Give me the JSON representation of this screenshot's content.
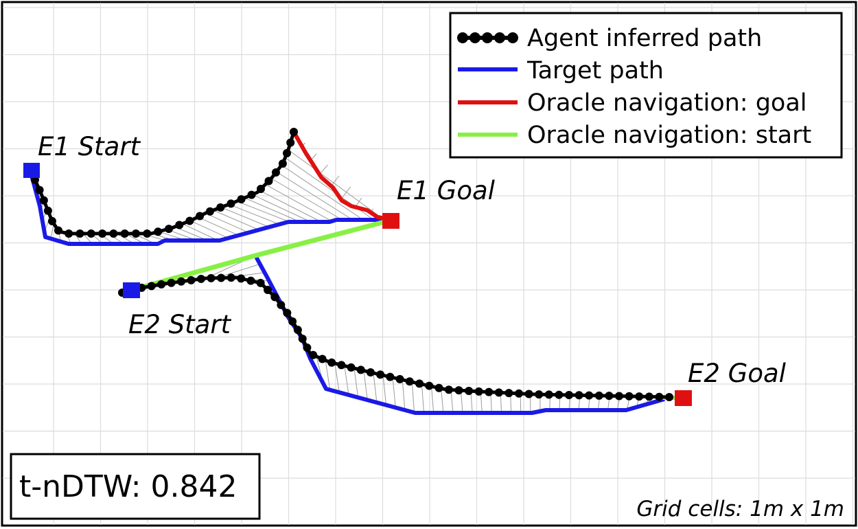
{
  "labels": {
    "e1_start": "E1 Start",
    "e1_goal": "E1 Goal",
    "e2_start": "E2 Start",
    "e2_goal": "E2 Goal"
  },
  "legend": [
    {
      "label": "Agent inferred path",
      "color": "#000000",
      "style": "dots"
    },
    {
      "label": "Target path",
      "color": "#1a1ae6",
      "style": "line"
    },
    {
      "label": "Oracle navigation: goal",
      "color": "#e01010",
      "style": "line"
    },
    {
      "label": "Oracle navigation: start",
      "color": "#88f045",
      "style": "line"
    }
  ],
  "metric": "t-nDTW: 0.842",
  "grid_caption": "Grid cells: 1m x 1m",
  "colors": {
    "agent": "#000000",
    "target": "#1a1ae6",
    "oracle_goal": "#e01010",
    "oracle_start": "#88f045",
    "start_marker": "#1a1ae6",
    "goal_marker": "#e01010",
    "grid": "#dcdcdc",
    "alignment": "#9a9a9a"
  }
}
